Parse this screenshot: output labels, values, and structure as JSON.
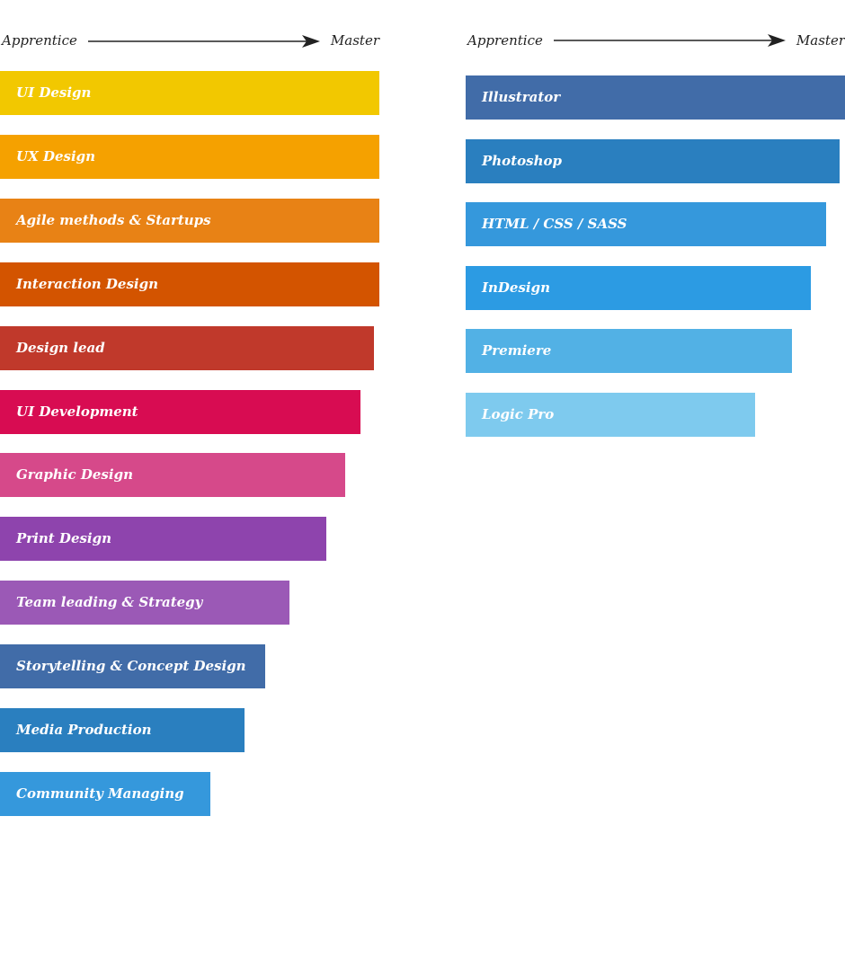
{
  "chart_data": [
    {
      "type": "bar",
      "orientation": "horizontal",
      "scale_start_label": "Apprentice",
      "scale_end_label": "Master",
      "xlim": [
        0,
        100
      ],
      "grid": false,
      "categories": [
        "UI Design",
        "UX Design",
        "Agile methods & Startups",
        "Interaction Design",
        "Design lead",
        "UI Development",
        "Graphic Design",
        "Print Design",
        "Team leading &  Strategy",
        "Storytelling & Concept Design",
        "Media Production",
        "Community Managing"
      ],
      "values": [
        100,
        100,
        100,
        100,
        98.6,
        95,
        91,
        86,
        76.3,
        69.9,
        64.5,
        55.5
      ],
      "colors": [
        "#f2c800",
        "#f5a100",
        "#e88215",
        "#d35400",
        "#c0392b",
        "#d80c52",
        "#d6498a",
        "#8e44ad",
        "#9b59b6",
        "#416ca8",
        "#2a7fbf",
        "#3598dc"
      ]
    },
    {
      "type": "bar",
      "orientation": "horizontal",
      "scale_start_label": "Apprentice",
      "scale_end_label": "Master",
      "xlim": [
        0,
        100
      ],
      "grid": false,
      "categories": [
        "Illustrator",
        "Photoshop",
        "HTML  / CSS / SASS",
        "InDesign",
        "Premiere",
        "Logic Pro"
      ],
      "values": [
        100,
        98.6,
        95,
        91,
        86,
        76.3
      ],
      "colors": [
        "#416ca8",
        "#2a7fbf",
        "#3598dc",
        "#2c9be3",
        "#52b1e5",
        "#7ecaee"
      ]
    }
  ]
}
